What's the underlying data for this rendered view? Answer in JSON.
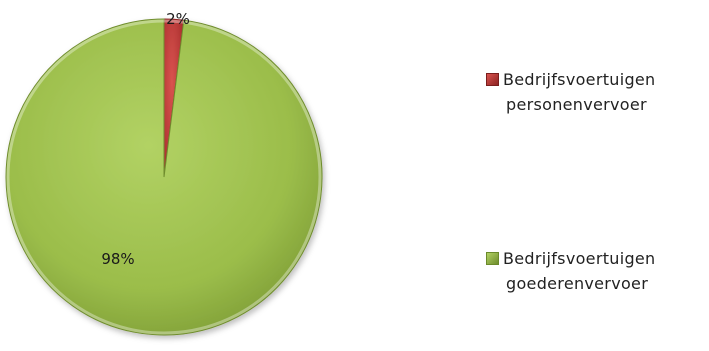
{
  "chart_data": {
    "type": "pie",
    "categories": [
      "Bedrijfsvoertuigen personenvervoer",
      "Bedrijfsvoertuigen goederenvervoer"
    ],
    "values": [
      2,
      98
    ],
    "data_labels": [
      "2%",
      "98%"
    ],
    "colors": [
      "#c0393a",
      "#9bbd4a"
    ],
    "legend": {
      "placement": "right",
      "entries": [
        {
          "line1": "Bedrijfsvoertuigen",
          "line2": "personenvervoer"
        },
        {
          "line1": "Bedrijfsvoertuigen",
          "line2": "goederenvervoer"
        }
      ]
    }
  }
}
